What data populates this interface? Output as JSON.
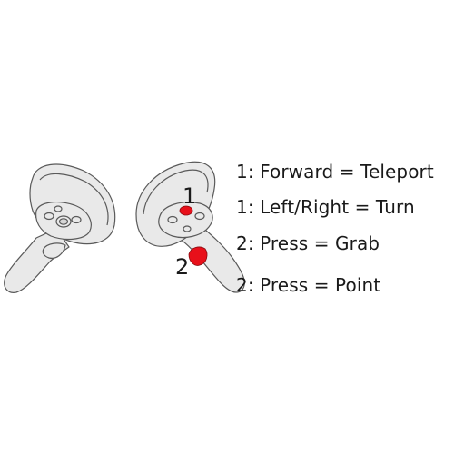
{
  "markers": [
    {
      "label": "1",
      "color": "#e8101a"
    },
    {
      "label": "2",
      "color": "#e8101a"
    }
  ],
  "instructions": [
    "1: Forward = Teleport",
    "1: Left/Right = Turn",
    "2: Press = Grab",
    "2: Press = Point"
  ],
  "colors": {
    "controller_fill": "#e9e9e9",
    "controller_stroke": "#5a5a5a",
    "highlight": "#e8101a"
  }
}
